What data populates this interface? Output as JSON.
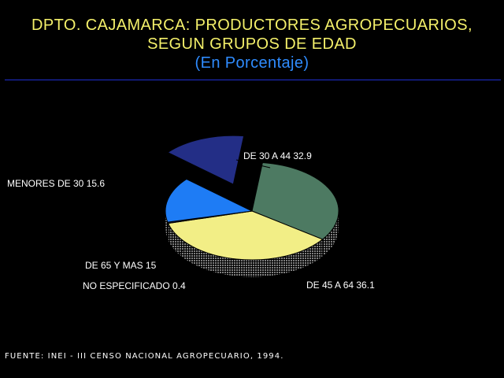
{
  "colors": {
    "background": "#000000",
    "title": "#f4f06a",
    "subtitle": "#2f8cff",
    "rule": "#1f2fd0",
    "text": "#ffffff"
  },
  "chart_data": {
    "type": "pie",
    "title_lines": [
      "DPTO. CAJAMARCA: PRODUCTORES AGROPECUARIOS,",
      "SEGUN GRUPOS DE EDAD"
    ],
    "subtitle": "(En Porcentaje)",
    "slices": [
      {
        "label": "DE 30 A 44",
        "value": 32.9,
        "display": "DE 30 A 44  32.9",
        "color": "#4d7a62",
        "exploded": false
      },
      {
        "label": "DE 45 A 64",
        "value": 36.1,
        "display": "DE 45 A 64  36.1",
        "color": "#f2ee86",
        "exploded": false
      },
      {
        "label": "NO ESPECIFICADO",
        "value": 0.4,
        "display": "NO ESPECIFICADO  0.4",
        "color": "#1a1a3a",
        "exploded": false
      },
      {
        "label": "DE 65 Y MAS",
        "value": 15,
        "display": "DE 65 Y MAS  15",
        "color": "#1e7cf5",
        "exploded": false
      },
      {
        "label": "MENORES DE 30",
        "value": 15.6,
        "display": "MENORES DE 30  15.6",
        "color": "#232e86",
        "exploded": true
      }
    ],
    "three_d": true,
    "legend": "none"
  },
  "source": "FUENTE: INEI - III CENSO NACIONAL AGROPECUARIO, 1994."
}
